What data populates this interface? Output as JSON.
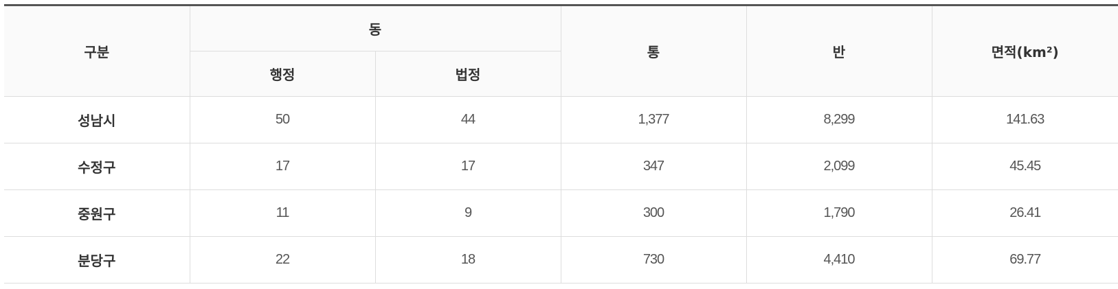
{
  "table": {
    "headers": {
      "category": "구분",
      "dong": "동",
      "dong_admin": "행정",
      "dong_legal": "법정",
      "tong": "통",
      "ban": "반",
      "area": "면적(km²)"
    },
    "rows": [
      {
        "name": "성남시",
        "admin": "50",
        "legal": "44",
        "tong": "1,377",
        "ban": "8,299",
        "area": "141.63"
      },
      {
        "name": "수정구",
        "admin": "17",
        "legal": "17",
        "tong": "347",
        "ban": "2,099",
        "area": "45.45"
      },
      {
        "name": "중원구",
        "admin": "11",
        "legal": "9",
        "tong": "300",
        "ban": "1,790",
        "area": "26.41"
      },
      {
        "name": "분당구",
        "admin": "22",
        "legal": "18",
        "tong": "730",
        "ban": "4,410",
        "area": "69.77"
      }
    ]
  },
  "colors": {
    "top_border": "#555555",
    "header_background": "#fafafa",
    "cell_border": "#dddddd"
  }
}
